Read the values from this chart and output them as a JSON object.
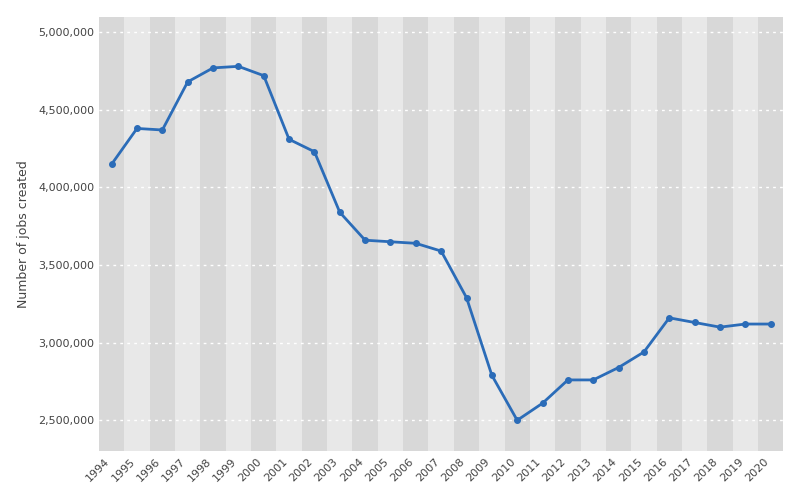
{
  "years": [
    1994,
    1995,
    1996,
    1997,
    1998,
    1999,
    2000,
    2001,
    2002,
    2003,
    2004,
    2005,
    2006,
    2007,
    2008,
    2009,
    2010,
    2011,
    2012,
    2013,
    2014,
    2015,
    2016,
    2017,
    2018,
    2019,
    2020
  ],
  "values": [
    4150000,
    4380000,
    4370000,
    4680000,
    4770000,
    4780000,
    4720000,
    4310000,
    4230000,
    3840000,
    3660000,
    3650000,
    3640000,
    3590000,
    3290000,
    2790000,
    2500000,
    2610000,
    2760000,
    2760000,
    2840000,
    2940000,
    3160000,
    3130000,
    3100000,
    3120000,
    3120000
  ],
  "line_color": "#2b6cb8",
  "marker_color": "#2b6cb8",
  "background_color": "#ffffff",
  "plot_bg_color": "#e8e8e8",
  "stripe_color_dark": "#d8d8d8",
  "stripe_color_light": "#e8e8e8",
  "grid_color": "#ffffff",
  "ylabel": "Number of jobs created",
  "ylim": [
    2300000,
    5100000
  ],
  "yticks": [
    2500000,
    3000000,
    3500000,
    4000000,
    4500000,
    5000000
  ],
  "axis_fontsize": 9,
  "tick_fontsize": 8,
  "line_width": 2.0,
  "marker_size": 4
}
